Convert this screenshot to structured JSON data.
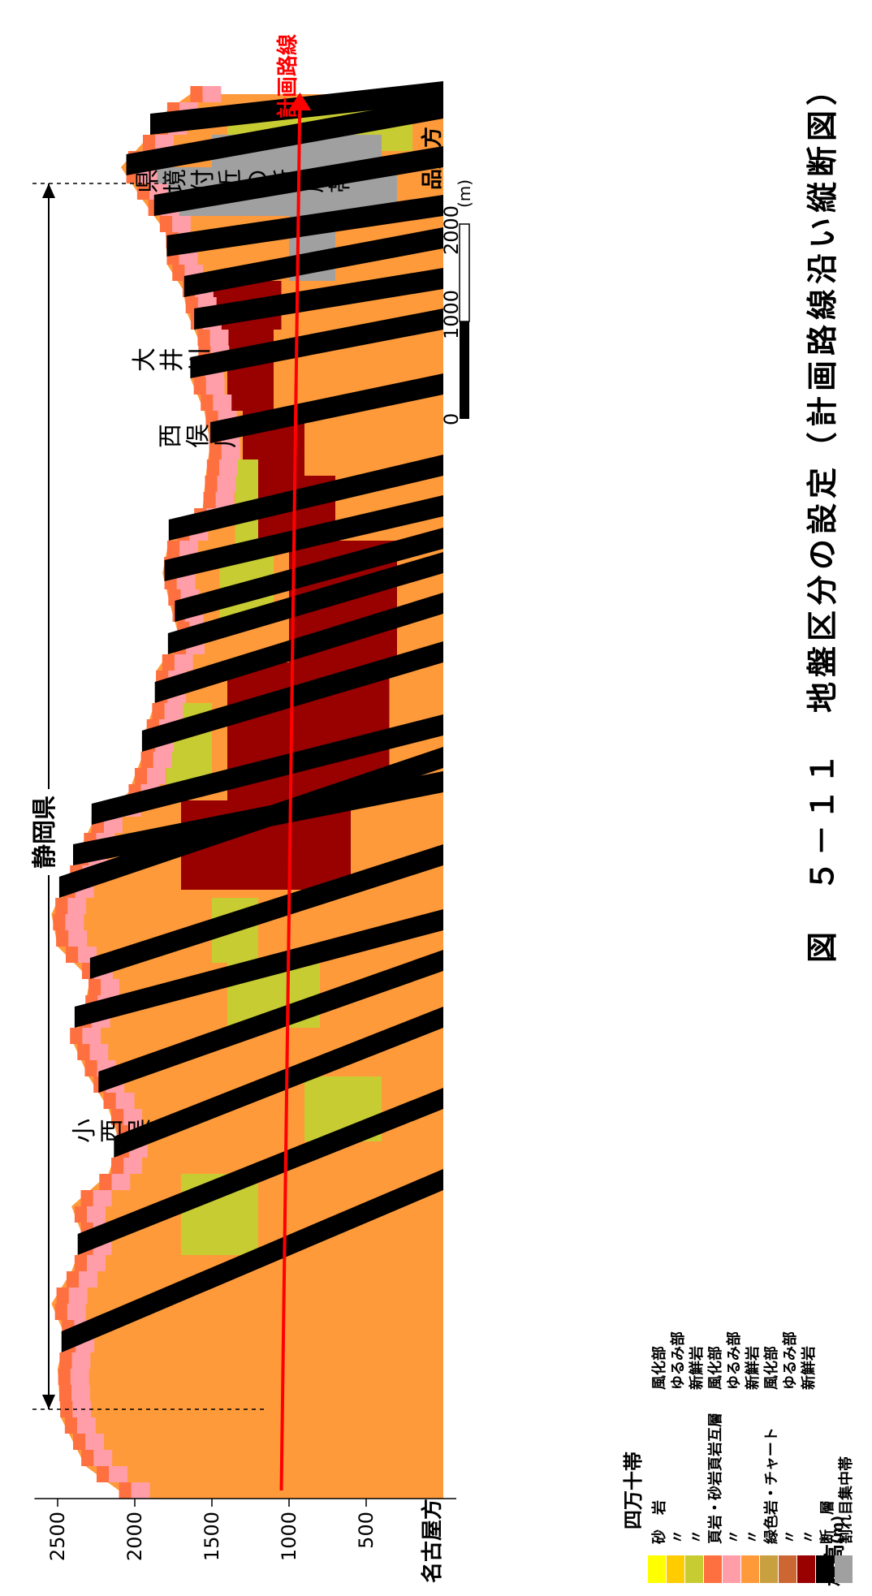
{
  "route_label": "計画路線",
  "elevation": {
    "title": "標高",
    "unit": "(m)",
    "ticks": [
      "2500",
      "2000",
      "1500",
      "1000",
      "500"
    ],
    "tick_values": [
      2500,
      2000,
      1500,
      1000,
      500
    ],
    "range": [
      0,
      2650
    ]
  },
  "ends": {
    "west": "名古屋方",
    "east": "品川方"
  },
  "regions": {
    "prefecture": "静岡県",
    "fault_zone": "県境付近の断層帯"
  },
  "places": {
    "kozumata": "小西俣",
    "nishimata": "西俣川",
    "oi": "大井川"
  },
  "scale_bar": {
    "ticks": [
      "0",
      "1000",
      "2000"
    ],
    "unit": "(m)"
  },
  "legend": {
    "title": "四万十帯",
    "items": [
      {
        "group": "砂　岩",
        "state": "風化部",
        "color": "#FFFF00"
      },
      {
        "group": "〃",
        "state": "ゆるみ部",
        "color": "#FFCC00"
      },
      {
        "group": "〃",
        "state": "新鮮岩",
        "color": "#C8CC33"
      },
      {
        "group": "頁岩・砂岩頁岩互層",
        "state": "風化部",
        "color": "#FF7040"
      },
      {
        "group": "〃",
        "state": "ゆるみ部",
        "color": "#FF9EA8"
      },
      {
        "group": "〃",
        "state": "新鮮岩",
        "color": "#FF9A3A"
      },
      {
        "group": "緑色岩・チャート",
        "state": "風化部",
        "color": "#C8A040"
      },
      {
        "group": "〃",
        "state": "ゆるみ部",
        "color": "#CC6633"
      },
      {
        "group": "〃",
        "state": "新鮮岩",
        "color": "#990000"
      },
      {
        "group": "断　層",
        "state": "",
        "color": "#000000"
      },
      {
        "group": "割れ目集中帯",
        "state": "",
        "color": "#A0A0A0"
      }
    ]
  },
  "caption": "図　５－１１　地盤区分の設定（計画路線沿い縦断図）",
  "colors": {
    "route": "#FF0000",
    "sandstone_fresh": "#C8CC33",
    "shale_fresh": "#FF9A3A",
    "shale_loose": "#FF9EA8",
    "shale_weathered": "#FF7040",
    "green_fresh": "#990000",
    "fault": "#000000",
    "fracture": "#A0A0A0"
  }
}
